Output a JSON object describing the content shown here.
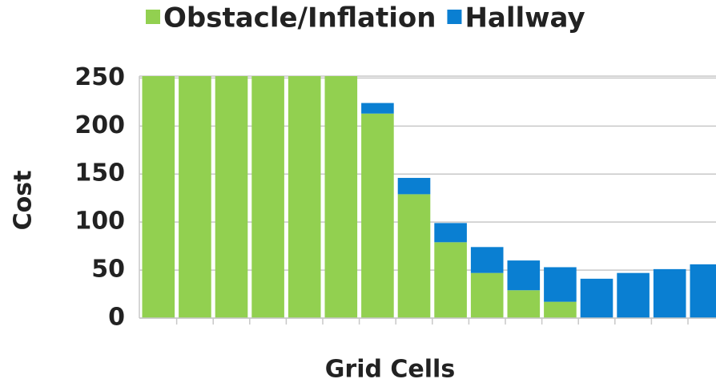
{
  "chart_data": {
    "type": "stacked_bar",
    "categories": [
      null,
      null,
      null,
      null,
      null,
      null,
      null,
      null,
      null,
      null,
      null,
      null,
      null,
      null,
      null,
      null
    ],
    "series": [
      {
        "name": "Obstacle/Inflation",
        "color": "#92d050",
        "values": [
          252,
          252,
          252,
          252,
          252,
          252,
          213,
          129,
          79,
          47,
          29,
          17,
          0,
          0,
          0,
          0
        ]
      },
      {
        "name": "Hallway",
        "color": "#0a7fd2",
        "values": [
          0,
          0,
          0,
          0,
          0,
          0,
          11,
          17,
          20,
          27,
          31,
          36,
          41,
          47,
          51,
          56
        ]
      }
    ],
    "x_label": "Grid Cells",
    "y_label": "Cost",
    "ylim": [
      0,
      252
    ],
    "yticks": [
      0,
      50,
      100,
      150,
      200,
      250
    ],
    "grid": true
  }
}
